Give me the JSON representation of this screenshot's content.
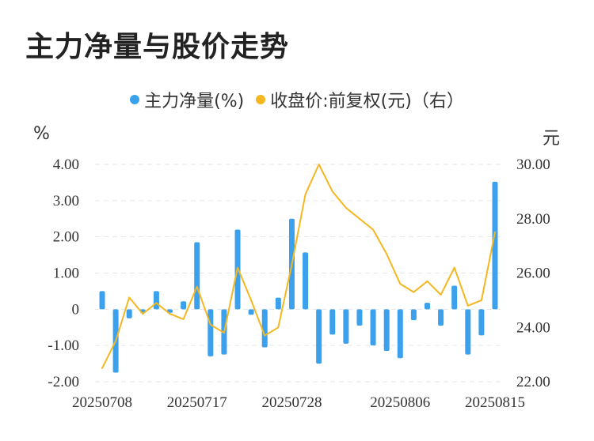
{
  "title": "主力净量与股价走势",
  "legend": {
    "bar_label": "主力净量(%)",
    "line_label": "收盘价:前复权(元)（右）"
  },
  "units": {
    "left": "%",
    "right": "元"
  },
  "colors": {
    "bar": "#3ba1ec",
    "line": "#f5b720",
    "grid": "#e6e6e6"
  },
  "chart_data": {
    "type": "bar+line",
    "x_ticks": [
      "20250708",
      "20250717",
      "20250728",
      "20250806",
      "20250815"
    ],
    "left_axis": {
      "ylim": [
        -2,
        4
      ],
      "ticks": [
        "4.00",
        "3.00",
        "2.00",
        "1.00",
        "0",
        "-1.00",
        "-2.00"
      ]
    },
    "right_axis": {
      "ylim": [
        22,
        30
      ],
      "ticks": [
        "30.00",
        "28.00",
        "26.00",
        "24.00",
        "22.00"
      ]
    },
    "series": [
      {
        "name": "主力净量(%)",
        "type": "bar",
        "axis": "left",
        "values": [
          0.5,
          -1.75,
          -0.25,
          -0.1,
          0.5,
          -0.1,
          0.22,
          1.85,
          -1.3,
          -1.25,
          2.2,
          -0.15,
          -1.05,
          0.32,
          2.5,
          1.57,
          -1.5,
          -0.7,
          -0.95,
          -0.45,
          -1.0,
          -1.15,
          -1.35,
          -0.3,
          0.18,
          -0.45,
          0.65,
          -1.25,
          -0.72,
          3.52
        ]
      },
      {
        "name": "收盘价:前复权(元)（右）",
        "type": "line",
        "axis": "right",
        "values": [
          22.5,
          23.5,
          25.1,
          24.5,
          24.9,
          24.5,
          24.3,
          25.5,
          24.1,
          23.8,
          26.2,
          25.0,
          23.7,
          24.0,
          26.3,
          28.9,
          30.0,
          29.0,
          28.4,
          28.0,
          27.6,
          26.7,
          25.6,
          25.3,
          25.7,
          25.2,
          26.2,
          24.8,
          25.0,
          27.5
        ]
      }
    ],
    "grid": true
  }
}
